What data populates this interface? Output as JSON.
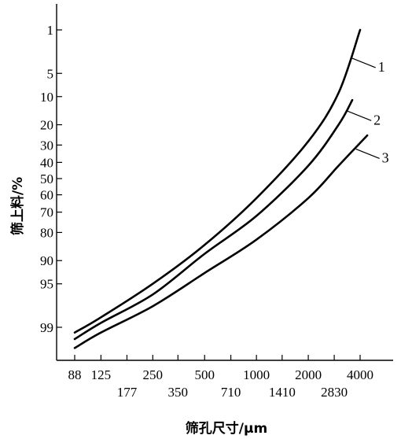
{
  "chart_data": {
    "type": "line",
    "xlabel": "筛孔尺寸/μm",
    "ylabel": "筛上料/%",
    "x_scale": "log",
    "y_scale": "probability",
    "xlim": [
      80,
      5000
    ],
    "ylim": [
      0.5,
      99.9
    ],
    "grid": false,
    "x_ticks_top_row": [
      {
        "value": 88,
        "label": "88"
      },
      {
        "value": 125,
        "label": "125"
      },
      {
        "value": 250,
        "label": "250"
      },
      {
        "value": 500,
        "label": "500"
      },
      {
        "value": 1000,
        "label": "1000"
      },
      {
        "value": 2000,
        "label": "2000"
      },
      {
        "value": 4000,
        "label": "4000"
      }
    ],
    "x_ticks_bottom_row": [
      {
        "value": 177,
        "label": "177"
      },
      {
        "value": 350,
        "label": "350"
      },
      {
        "value": 710,
        "label": "710"
      },
      {
        "value": 1410,
        "label": "1410"
      },
      {
        "value": 2830,
        "label": "2830"
      }
    ],
    "y_ticks": [
      {
        "value": 1,
        "label": "1"
      },
      {
        "value": 5,
        "label": "5"
      },
      {
        "value": 10,
        "label": "10"
      },
      {
        "value": 20,
        "label": "20"
      },
      {
        "value": 30,
        "label": "30"
      },
      {
        "value": 40,
        "label": "40"
      },
      {
        "value": 50,
        "label": "50"
      },
      {
        "value": 60,
        "label": "60"
      },
      {
        "value": 70,
        "label": "70"
      },
      {
        "value": 80,
        "label": "80"
      },
      {
        "value": 90,
        "label": "90"
      },
      {
        "value": 95,
        "label": "95"
      },
      {
        "value": 99,
        "label": "99"
      }
    ],
    "series": [
      {
        "name": "1",
        "points": [
          [
            88,
            99.2
          ],
          [
            125,
            98.5
          ],
          [
            250,
            95
          ],
          [
            500,
            85
          ],
          [
            1000,
            62
          ],
          [
            2000,
            28
          ],
          [
            3000,
            9
          ],
          [
            4000,
            1
          ]
        ]
      },
      {
        "name": "2",
        "points": [
          [
            88,
            99.4
          ],
          [
            125,
            98.8
          ],
          [
            250,
            96.5
          ],
          [
            500,
            88
          ],
          [
            1000,
            72
          ],
          [
            2000,
            42
          ],
          [
            3000,
            20
          ],
          [
            3600,
            11
          ]
        ]
      },
      {
        "name": "3",
        "points": [
          [
            88,
            99.6
          ],
          [
            125,
            99.2
          ],
          [
            250,
            97.7
          ],
          [
            500,
            93
          ],
          [
            1000,
            83
          ],
          [
            2000,
            62
          ],
          [
            3000,
            42
          ],
          [
            4400,
            25
          ]
        ]
      }
    ]
  }
}
